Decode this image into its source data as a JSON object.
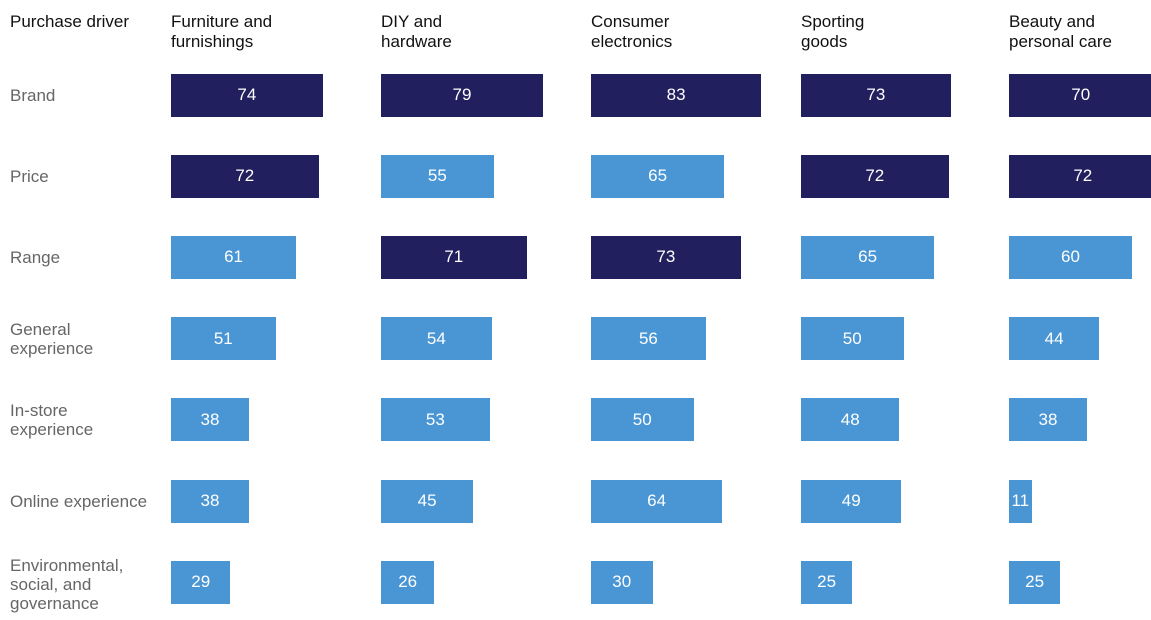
{
  "chart_data": {
    "type": "bar",
    "row_header": "Purchase driver",
    "categories": [
      "Brand",
      "Price",
      "Range",
      "General experience",
      "In-store experience",
      "Online experience",
      "Environmental, social, and governance"
    ],
    "xlim": [
      0,
      100
    ],
    "series": [
      {
        "name": "Furniture and furnishings",
        "values": [
          74,
          72,
          61,
          51,
          38,
          38,
          29
        ],
        "colors": [
          "#211f5e",
          "#211f5e",
          "#4a96d5",
          "#4a96d5",
          "#4a96d5",
          "#4a96d5",
          "#4a96d5"
        ]
      },
      {
        "name": "DIY and hardware",
        "values": [
          79,
          55,
          71,
          54,
          53,
          45,
          26
        ],
        "colors": [
          "#211f5e",
          "#4a96d5",
          "#211f5e",
          "#4a96d5",
          "#4a96d5",
          "#4a96d5",
          "#4a96d5"
        ]
      },
      {
        "name": "Consumer electronics",
        "values": [
          83,
          65,
          73,
          56,
          50,
          64,
          30
        ],
        "colors": [
          "#211f5e",
          "#4a96d5",
          "#211f5e",
          "#4a96d5",
          "#4a96d5",
          "#4a96d5",
          "#4a96d5"
        ]
      },
      {
        "name": "Sporting goods",
        "values": [
          73,
          72,
          65,
          50,
          48,
          49,
          25
        ],
        "colors": [
          "#211f5e",
          "#211f5e",
          "#4a96d5",
          "#4a96d5",
          "#4a96d5",
          "#4a96d5",
          "#4a96d5"
        ]
      },
      {
        "name": "Beauty and personal care",
        "values": [
          70,
          72,
          60,
          44,
          38,
          11,
          25
        ],
        "colors": [
          "#211f5e",
          "#211f5e",
          "#4a96d5",
          "#4a96d5",
          "#4a96d5",
          "#4a96d5",
          "#4a96d5"
        ]
      }
    ]
  }
}
